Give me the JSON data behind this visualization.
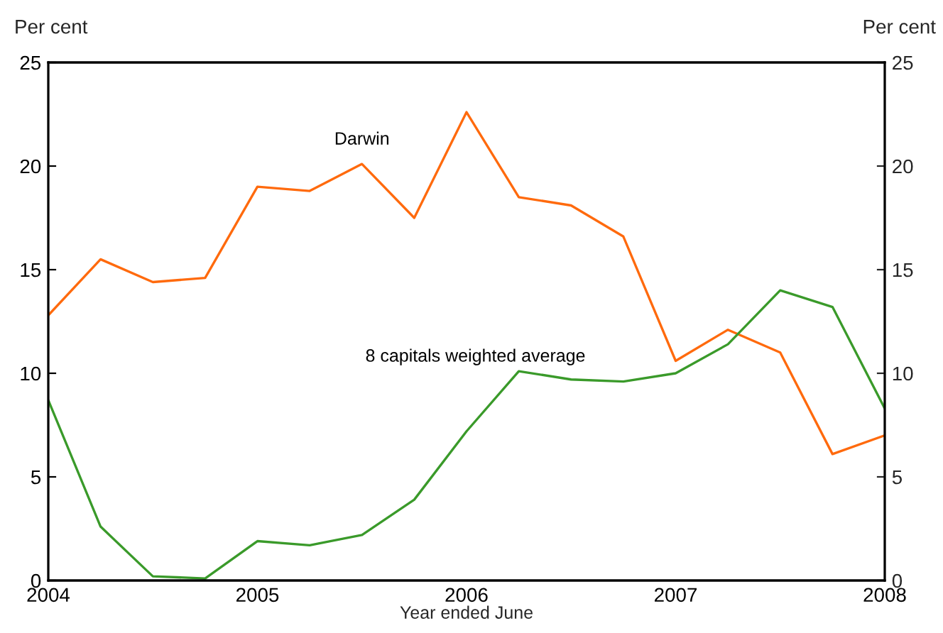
{
  "chart_data": {
    "type": "line",
    "xlabel": "Year ended June",
    "ylabel": "Per cent",
    "y2label": "Per cent",
    "x": [
      2004,
      2004.25,
      2004.5,
      2004.75,
      2005,
      2005.25,
      2005.5,
      2005.75,
      2006,
      2006.25,
      2006.5,
      2006.75,
      2007,
      2007.25,
      2007.5,
      2007.75,
      2008
    ],
    "series": [
      {
        "name": "Darwin",
        "color": "#ff6a0d",
        "values": [
          12.8,
          15.5,
          14.4,
          14.6,
          19.0,
          18.8,
          20.1,
          17.5,
          22.6,
          18.5,
          18.1,
          16.6,
          10.6,
          12.1,
          11.0,
          6.1,
          7.0
        ]
      },
      {
        "name": "8 capitals weighted average",
        "color": "#3a9a2a",
        "values": [
          8.7,
          2.6,
          0.2,
          0.1,
          1.9,
          1.7,
          2.2,
          3.9,
          7.2,
          10.1,
          9.7,
          9.6,
          10.0,
          11.4,
          14.0,
          13.2,
          8.3
        ]
      }
    ],
    "xlim": [
      2004,
      2008
    ],
    "xticks": [
      2004,
      2005,
      2006,
      2007,
      2008
    ],
    "ylim": [
      0,
      25
    ],
    "yticks": [
      0,
      5,
      10,
      15,
      20,
      25
    ],
    "y2lim": [
      0,
      25
    ],
    "y2ticks": [
      0,
      5,
      10,
      15,
      20,
      25
    ],
    "grid": false,
    "legend": false,
    "marker": "none",
    "line_style": "solid"
  }
}
